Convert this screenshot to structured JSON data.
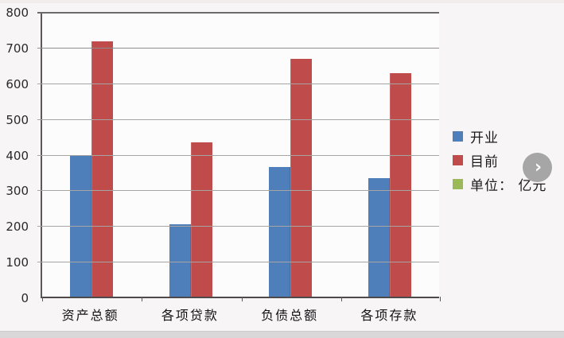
{
  "chart_data": {
    "type": "bar",
    "title": "",
    "xlabel": "",
    "ylabel": "",
    "categories": [
      "资产总额",
      "各项贷款",
      "负债总额",
      "各项存款"
    ],
    "series": [
      {
        "name": "开业",
        "color": "#4e7fba",
        "values": [
          400,
          205,
          365,
          335
        ]
      },
      {
        "name": "目前",
        "color": "#bf4c4a",
        "values": [
          720,
          435,
          670,
          630
        ]
      }
    ],
    "unit_legend": {
      "label": "单位： 亿元",
      "color": "#9aba5a"
    },
    "ylim": [
      0,
      800
    ],
    "yticks": [
      0,
      100,
      200,
      300,
      400,
      500,
      600,
      700,
      800
    ],
    "grid": "horizontal",
    "legend_position": "right"
  },
  "controls": {
    "next_button_glyph": "›"
  },
  "colors": {
    "background": "#f7f5f6",
    "plot_background": "#fdfcfc",
    "gridline": "#a7a4a4",
    "axis": "#4e4a4b",
    "next_button": "#a6a6a6"
  }
}
